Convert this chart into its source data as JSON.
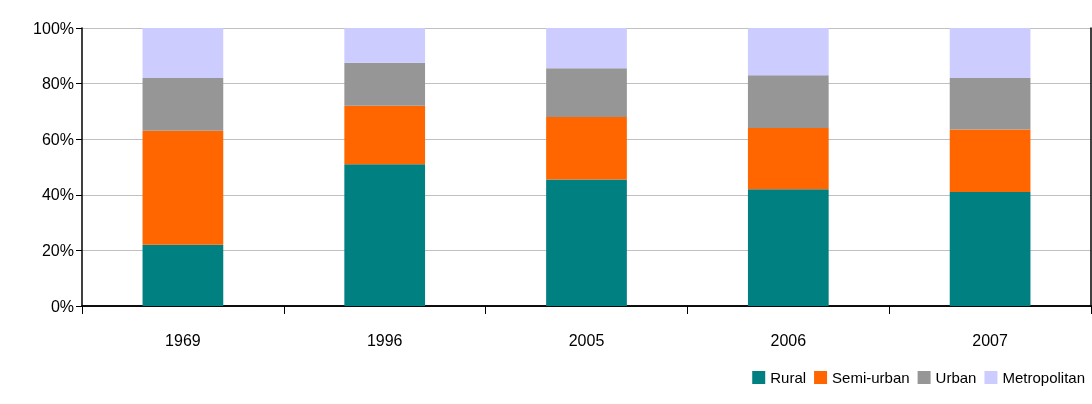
{
  "chart_data": {
    "type": "bar",
    "stacked": true,
    "categories": [
      "1969",
      "1996",
      "2005",
      "2006",
      "2007"
    ],
    "series": [
      {
        "name": "Rural",
        "color": "#008080",
        "values": [
          22,
          51,
          45.5,
          42,
          41
        ]
      },
      {
        "name": "Semi-urban",
        "color": "#ff6600",
        "values": [
          41,
          21,
          22.5,
          22,
          22.5
        ]
      },
      {
        "name": "Urban",
        "color": "#969696",
        "values": [
          19,
          15.5,
          17.5,
          19,
          18.5
        ]
      },
      {
        "name": "Metropolitan",
        "color": "#ccccff",
        "values": [
          18,
          12.5,
          14.5,
          17,
          18
        ]
      }
    ],
    "ylim": [
      0,
      100
    ],
    "yticks": [
      {
        "value": 0,
        "label": "0%"
      },
      {
        "value": 20,
        "label": "20%"
      },
      {
        "value": 40,
        "label": "40%"
      },
      {
        "value": 60,
        "label": "60%"
      },
      {
        "value": 80,
        "label": "80%"
      },
      {
        "value": 100,
        "label": "100%"
      }
    ],
    "grid": "y",
    "legend": "bottom right"
  }
}
